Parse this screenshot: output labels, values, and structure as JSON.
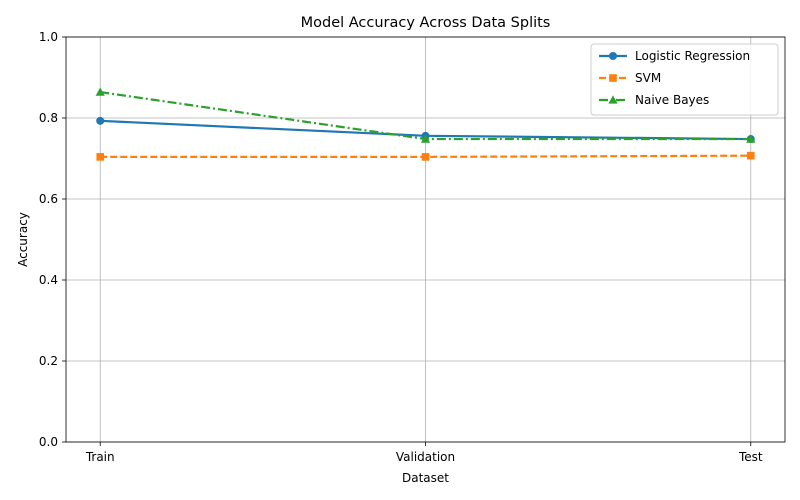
{
  "chart_data": {
    "type": "line",
    "title": "Model Accuracy Across Data Splits",
    "xlabel": "Dataset",
    "ylabel": "Accuracy",
    "categories": [
      "Train",
      "Validation",
      "Test"
    ],
    "ylim": [
      0,
      1.0
    ],
    "yticks": [
      "0.0",
      "0.2",
      "0.4",
      "0.6",
      "0.8",
      "1.0"
    ],
    "grid": true,
    "legend_position": "top-right",
    "series": [
      {
        "name": "Logistic Regression",
        "values": [
          0.793,
          0.756,
          0.748
        ],
        "color": "#1f77b4",
        "linestyle": "solid",
        "marker": "circle"
      },
      {
        "name": "SVM",
        "values": [
          0.704,
          0.704,
          0.707
        ],
        "color": "#ff7f0e",
        "linestyle": "dashed",
        "marker": "square"
      },
      {
        "name": "Naive Bayes",
        "values": [
          0.864,
          0.748,
          0.748
        ],
        "color": "#2ca02c",
        "linestyle": "dashdot",
        "marker": "triangle"
      }
    ]
  }
}
